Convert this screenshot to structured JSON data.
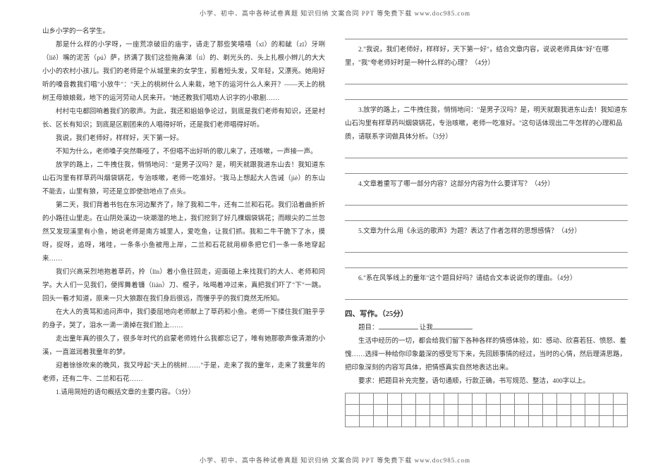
{
  "header": "小学、初中、高中各种试卷真题 知识归纳 文案合同 PPT 等免费下载   www.doc985.com",
  "footer": "小学、初中、高中各种试卷真题 知识归纳 文案合同 PPT 等免费下载   www.doc985.com",
  "left": {
    "p1": "山乡小学的一名学生。",
    "p2": "那是什么样的小学呀，一座荒凉破旧的庙宇，请走了那些笑嘻嘻（xī）的和龇（zī）牙咧（liě）嘴的泥苦（pú）萨，挤满了我们这些拖鼻涕（tì）的、剃光头的、头上扎根小辫儿的大大小小的农村小孩儿。我们的老师是个从城里来的女学生，剪着短头发，又年轻，又漂亮。她用好听的嗓音教我们唱\"小放牛\"：\"天上的桃树什么人来栽，地下的运河什么人来开？——天上的桃树王母娘娘栽，地下的运河劳动人民来开。\"她还教我们唱劝人识字的小歌剧……",
    "p3": "村村屯屯都回响着我们的歌声。为此，我还和姐姐争论过，到底是我们老师有知识，还是村长、区长有知识；到底是区剧团来的人唱得好听，还是我们老师唱得好听。",
    "p4": "我说，我们老师好，样样好，天下第一好。",
    "p5": "不知为什么，老师嗓子突然嘶哑了，不但唱不出好听的歌儿来了，还咳嗽，一声接一声。",
    "p6": "放学的路上，二牛拽住我，悄悄地问：\"是男子汉吗？是，明天就跟我进东山去！我知道东山石沟里有样草药叫烟袋锅花，专治咳嗽，老师一吃准好。\"我马上想起大人告诫（jiè）的东山不能去，山里有狼，可还是立即使劲地点了点头。",
    "p7": "第二天，我们背着书包在东河边聚齐了，除了我和二牛，还有二兰和石花。我们沿着曲折折的小路往山里走。在山阴处溪边一块潮湿的地上，我们挖到了好几棵烟袋锅花；而眼尖的二兰忽然又发现溪里有小鱼，她说老师是南方城里人，爱吃鱼，让我们抓。我和二牛干脆下了水，摸呀，捉呀，追呀，堵哇，一条条小鱼被甩上岸，二兰和石花就用柳条把它们一条一条地穿起来……",
    "p8": "我们兴高采烈地抱着草药，拎（līn）着小鱼往回走，迎面碰上来找我们的大人、老师和同学。大人们一见我们，便挥舞着镰（lián）刀、棍子，吆喝着冲过来，真把我们吓了\"下\"一跳。回头一看才知道，原来一只大狼跟在我们身后很远，而慢乎乎的我们竟然无所知。",
    "p9": "在大人的责骂和追问声中，我们委屈地向老师献上了草药和小鱼。老师一下搂住我们脏乎乎的身子，哭了，泪水一滴一滴掉在我们脸上……",
    "p10": "走出童年真的很久了，很多年时代的启蒙老师姓什么我都忘记了，唯有她那歌声像清澈的小溪，一直滋润着我童年的梦。",
    "p11": "迎着徐徐吹来的晚风，我又哼起\"天上的桃树……\"于是，走来了我的童年，走来了我童年的老师，还有二牛、二兰和石花……",
    "q1": "1.请用简短的语句概括文章的主要内容。（3分）"
  },
  "right": {
    "q2": "2.\"我说，我们老师好，样样好，天下第一好\"，结合文章内容，说说老师具体\"好\"在哪里，\"我\"夸老师好时是一种什么样的心理？（4分）",
    "q3": "3.放学的路上，二牛拽住我，悄悄地问：\"是男子汉吗？是，明天就跟我进东山去！我知道东山石沟里有样草药叫烟袋锅花，专治咳嗽，老师一吃准好。\"这句话体现出二牛怎样的心理和品质，请联系字词做具体分析。（3分）",
    "q4": "4.文章着重写了哪一部分内容？这部分内容为什么要详写？（4分）",
    "q5": "5.文章为什么用《永远的歌声》为题？表达了作者怎样的思想感情？（4分）",
    "q6": "6.\"系在风筝线上的童年\"这个题目好吗？请结合文本说说你的理由。（4分）"
  },
  "writing": {
    "head": "四、写作。（25分）",
    "prompt_pre": "题目：",
    "prompt_post": " 让我",
    "p1": "生活中经历的一切，都会给我们留下各种各样的情感体验，如：感动、欣喜若狂、愤怒、羞愧……选择一种给你印象最深的感受写下来，先回顾事情的经过，当时的心情，然后理清思路，把印象深刻的内容写具体，把情感真实自然地表达出来。",
    "p2": "要求：把题目补充完整，语句通顺，行款正确，书写规范、整洁，400字以上。"
  },
  "style": {
    "background": "#ffffff",
    "text_color": "#333333",
    "rule_color": "#888888",
    "font_size_body": 9.5,
    "font_size_head": 10.5,
    "grid_rows": 3,
    "grid_cols": 20
  }
}
